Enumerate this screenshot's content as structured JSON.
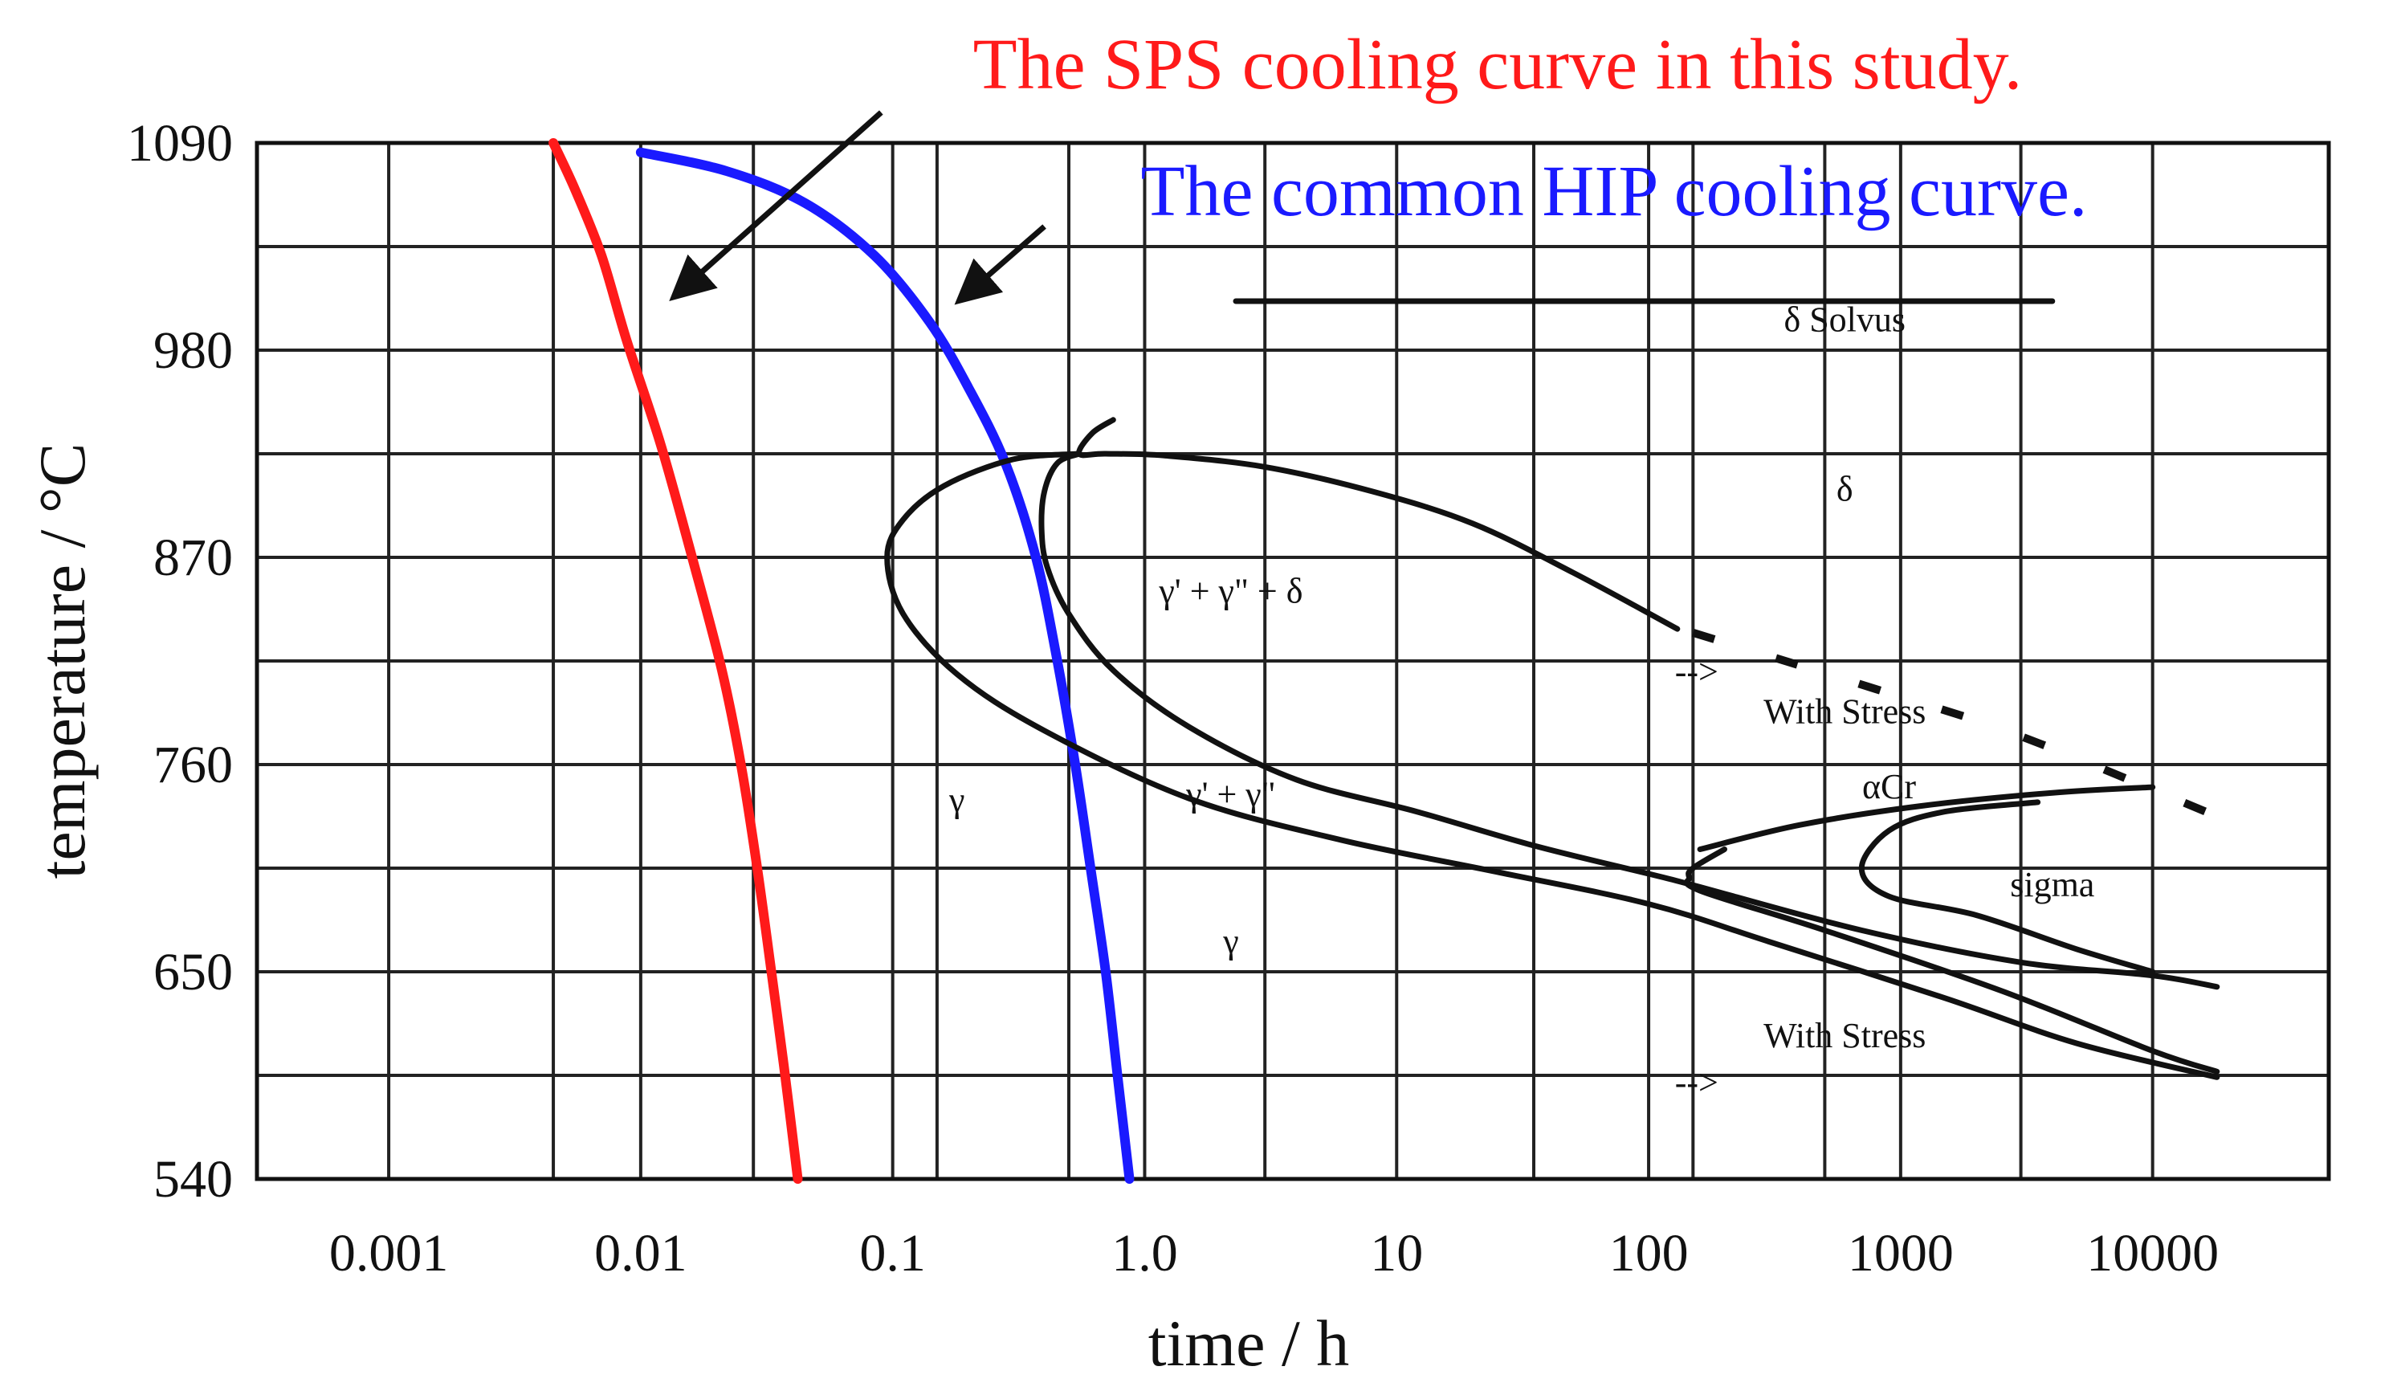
{
  "chart_data": {
    "type": "line",
    "title": "",
    "xlabel": "time / h",
    "ylabel": "temperature / °C",
    "xscale": "log",
    "xlim": [
      0.0003,
      50000
    ],
    "ylim": [
      540,
      1090
    ],
    "grid": true,
    "x_ticks": [
      {
        "value": 0.001,
        "label": "0.001"
      },
      {
        "value": 0.01,
        "label": "0.01"
      },
      {
        "value": 0.1,
        "label": "0.1"
      },
      {
        "value": 1,
        "label": "1.0"
      },
      {
        "value": 10,
        "label": "10"
      },
      {
        "value": 100,
        "label": "100"
      },
      {
        "value": 1000,
        "label": "1000"
      },
      {
        "value": 10000,
        "label": "10000"
      }
    ],
    "x_gridlines": [
      0.001,
      0.0045,
      0.01,
      0.028,
      0.1,
      0.15,
      0.5,
      1,
      3,
      10,
      35,
      100,
      150,
      500,
      1000,
      3000,
      10000
    ],
    "y_ticks": [
      {
        "value": 540,
        "label": "540"
      },
      {
        "value": 650,
        "label": "650"
      },
      {
        "value": 760,
        "label": "760"
      },
      {
        "value": 870,
        "label": "870"
      },
      {
        "value": 980,
        "label": "980"
      },
      {
        "value": 1090,
        "label": "1090"
      }
    ],
    "y_gridlines": [
      540,
      595,
      650,
      705,
      760,
      815,
      870,
      925,
      980,
      1035,
      1090
    ],
    "series": [
      {
        "name": "The SPS cooling curve in this study.",
        "color": "#ff1a1a",
        "points": [
          [
            0.0045,
            1090
          ],
          [
            0.0055,
            1065
          ],
          [
            0.007,
            1030
          ],
          [
            0.0088,
            985
          ],
          [
            0.012,
            930
          ],
          [
            0.016,
            870
          ],
          [
            0.021,
            810
          ],
          [
            0.025,
            760
          ],
          [
            0.029,
            705
          ],
          [
            0.033,
            650
          ],
          [
            0.037,
            600
          ],
          [
            0.042,
            540
          ]
        ]
      },
      {
        "name": "The common HIP cooling curve.",
        "color": "#1a1aff",
        "points": [
          [
            0.01,
            1085
          ],
          [
            0.022,
            1075
          ],
          [
            0.045,
            1058
          ],
          [
            0.085,
            1030
          ],
          [
            0.14,
            995
          ],
          [
            0.2,
            960
          ],
          [
            0.28,
            920
          ],
          [
            0.37,
            870
          ],
          [
            0.45,
            815
          ],
          [
            0.53,
            760
          ],
          [
            0.61,
            705
          ],
          [
            0.7,
            650
          ],
          [
            0.78,
            595
          ],
          [
            0.87,
            540
          ]
        ]
      },
      {
        "name": "delta-solvus",
        "color": "#111111",
        "points": [
          [
            2.3,
            1006
          ],
          [
            4000,
            1006
          ]
        ]
      },
      {
        "name": "delta-nose",
        "color": "#111111",
        "points": [
          [
            0.75,
            943
          ],
          [
            0.62,
            936
          ],
          [
            0.55,
            925
          ],
          [
            0.7,
            925
          ],
          [
            1.2,
            924
          ],
          [
            3,
            918
          ],
          [
            8,
            905
          ],
          [
            20,
            888
          ],
          [
            50,
            862
          ],
          [
            130,
            832
          ]
        ]
      },
      {
        "name": "gamma-prime-double-prime-delta-start",
        "color": "#111111",
        "points": [
          [
            0.55,
            925
          ],
          [
            0.45,
            920
          ],
          [
            0.4,
            905
          ],
          [
            0.39,
            885
          ],
          [
            0.41,
            865
          ],
          [
            0.5,
            840
          ],
          [
            0.75,
            810
          ],
          [
            1.5,
            780
          ],
          [
            4,
            752
          ],
          [
            12,
            735
          ],
          [
            35,
            717
          ],
          [
            100,
            702
          ],
          [
            150,
            696
          ],
          [
            700,
            672
          ],
          [
            3000,
            655
          ],
          [
            10000,
            648
          ],
          [
            18000,
            642
          ]
        ]
      },
      {
        "name": "gamma-double-prime-start",
        "color": "#111111",
        "points": [
          [
            0.55,
            925
          ],
          [
            0.3,
            922
          ],
          [
            0.16,
            908
          ],
          [
            0.11,
            890
          ],
          [
            0.095,
            870
          ],
          [
            0.11,
            840
          ],
          [
            0.18,
            808
          ],
          [
            0.4,
            778
          ],
          [
            1.5,
            742
          ],
          [
            6,
            720
          ],
          [
            25,
            703
          ],
          [
            100,
            686
          ],
          [
            300,
            666
          ],
          [
            1500,
            636
          ],
          [
            5000,
            612
          ],
          [
            18000,
            594
          ]
        ]
      },
      {
        "name": "alpha-cr-upper",
        "color": "#111111",
        "points": [
          [
            160,
            715
          ],
          [
            400,
            728
          ],
          [
            1200,
            738
          ],
          [
            4000,
            745
          ],
          [
            10000,
            748
          ]
        ]
      },
      {
        "name": "sigma-loop",
        "color": "#111111",
        "points": [
          [
            3500,
            740
          ],
          [
            1500,
            735
          ],
          [
            900,
            725
          ],
          [
            700,
            705
          ],
          [
            900,
            690
          ],
          [
            2000,
            680
          ],
          [
            5000,
            662
          ],
          [
            10000,
            650
          ]
        ]
      },
      {
        "name": "stress-shifted-lower",
        "color": "#111111",
        "points": [
          [
            200,
            715
          ],
          [
            150,
            705
          ],
          [
            145,
            700
          ],
          [
            160,
            693
          ],
          [
            500,
            672
          ],
          [
            2500,
            640
          ],
          [
            10000,
            608
          ],
          [
            18000,
            597
          ]
        ]
      },
      {
        "name": "stress-dashed",
        "color": "#111111",
        "dashed": true,
        "points": [
          [
            150,
            830
          ],
          [
            800,
            800
          ],
          [
            3000,
            775
          ],
          [
            20000,
            730
          ]
        ]
      }
    ],
    "annotations": [
      {
        "text": "The SPS cooling curve in this study.",
        "color": "#ff1a1a",
        "role": "legend-top"
      },
      {
        "text": "The common HIP cooling curve.",
        "color": "#1a1aff",
        "role": "legend-second"
      },
      {
        "text": "δ Solvus",
        "x": 600,
        "y": 990
      },
      {
        "text": "δ",
        "x": 600,
        "y": 900
      },
      {
        "text": "γ' + γ\" + δ",
        "x": 2.2,
        "y": 846
      },
      {
        "text": "-->",
        "x": 155,
        "y": 803
      },
      {
        "text": "With Stress",
        "x": 600,
        "y": 782
      },
      {
        "text": "γ",
        "x": 0.18,
        "y": 735
      },
      {
        "text": "γ' + γ\"",
        "x": 2.2,
        "y": 738
      },
      {
        "text": "αCr",
        "x": 900,
        "y": 742
      },
      {
        "text": "sigma",
        "x": 4000,
        "y": 690
      },
      {
        "text": "γ",
        "x": 2.2,
        "y": 660
      },
      {
        "text": "With Stress",
        "x": 600,
        "y": 610
      },
      {
        "text": "-->",
        "x": 155,
        "y": 585
      }
    ]
  }
}
